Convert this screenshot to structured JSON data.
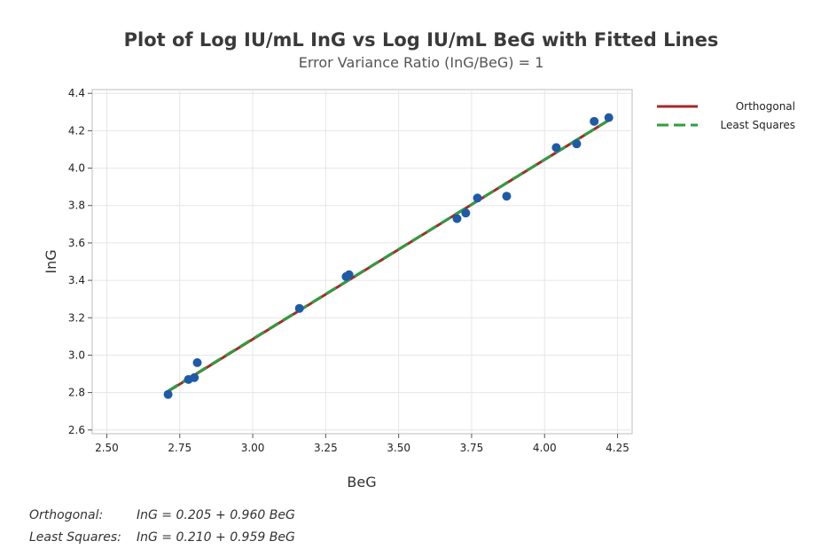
{
  "chart_data": {
    "type": "scatter",
    "title": "Plot of Log IU/mL InG vs Log IU/mL BeG with Fitted Lines",
    "subtitle": "Error Variance Ratio (InG/BeG) = 1",
    "xlabel": "BeG",
    "ylabel": "InG",
    "xlim": [
      2.45,
      4.3
    ],
    "ylim": [
      2.58,
      4.42
    ],
    "x_ticks": [
      2.5,
      2.75,
      3.0,
      3.25,
      3.5,
      3.75,
      4.0,
      4.25
    ],
    "x_tick_labels": [
      "2.50",
      "2.75",
      "3.00",
      "3.25",
      "3.50",
      "3.75",
      "4.00",
      "4.25"
    ],
    "y_ticks": [
      2.6,
      2.8,
      3.0,
      3.2,
      3.4,
      3.6,
      3.8,
      4.0,
      4.2,
      4.4
    ],
    "y_tick_labels": [
      "2.6",
      "2.8",
      "3.0",
      "3.2",
      "3.4",
      "3.6",
      "3.8",
      "4.0",
      "4.2",
      "4.4"
    ],
    "grid": true,
    "legend_position": "top-right",
    "points": [
      {
        "x": 2.71,
        "y": 2.79
      },
      {
        "x": 2.78,
        "y": 2.87
      },
      {
        "x": 2.8,
        "y": 2.88
      },
      {
        "x": 2.81,
        "y": 2.96
      },
      {
        "x": 3.16,
        "y": 3.25
      },
      {
        "x": 3.32,
        "y": 3.42
      },
      {
        "x": 3.33,
        "y": 3.43
      },
      {
        "x": 3.7,
        "y": 3.73
      },
      {
        "x": 3.73,
        "y": 3.76
      },
      {
        "x": 3.77,
        "y": 3.84
      },
      {
        "x": 3.87,
        "y": 3.85
      },
      {
        "x": 4.04,
        "y": 4.11
      },
      {
        "x": 4.11,
        "y": 4.13
      },
      {
        "x": 4.17,
        "y": 4.25
      },
      {
        "x": 4.22,
        "y": 4.27
      }
    ],
    "fitted_lines": [
      {
        "name": "Orthogonal",
        "intercept": 0.205,
        "slope": 0.96,
        "color": "#a52a2a",
        "style": "solid"
      },
      {
        "name": "Least Squares",
        "intercept": 0.21,
        "slope": 0.959,
        "color": "#2e9e3e",
        "style": "dashed"
      }
    ],
    "point_color": "#1f5aa6",
    "equations": [
      {
        "label": "Orthogonal:",
        "formula": "InG = 0.205 + 0.960 BeG"
      },
      {
        "label": "Least Squares:",
        "formula": "InG = 0.210 + 0.959 BeG"
      }
    ]
  }
}
